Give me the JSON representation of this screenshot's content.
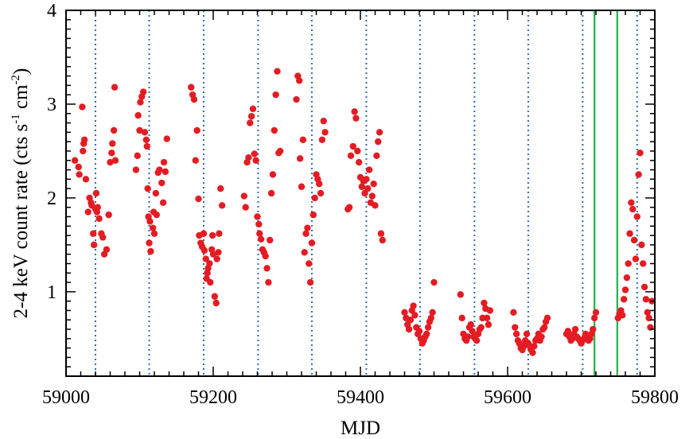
{
  "chart_data": {
    "type": "scatter",
    "title": "",
    "xlabel": "MJD",
    "ylabel": "2-4 keV count rate (cts s",
    "ylabel_sup1": "-1",
    "ylabel_mid": " cm",
    "ylabel_sup2": "-2",
    "ylabel_end": ")",
    "xlim": [
      59000,
      59800
    ],
    "ylim": [
      0.1,
      4.0
    ],
    "x_ticks": [
      59000,
      59200,
      59400,
      59600,
      59800
    ],
    "x_tick_labels": [
      "59000",
      "59200",
      "59400",
      "59600",
      "59800"
    ],
    "y_ticks": [
      1,
      2,
      3,
      4
    ],
    "y_tick_labels": [
      "1",
      "2",
      "3",
      "4"
    ],
    "grid": false,
    "marker_color": "#e31c23",
    "dotted_line_color": "#2f6db3",
    "solid_line_color": "#1db34a",
    "vlines_dotted": [
      59040,
      59113,
      59187,
      59261,
      59334,
      59408,
      59481,
      59555,
      59628,
      59702,
      59776
    ],
    "vlines_solid": [
      59718,
      59749
    ],
    "x": [
      59012,
      59017,
      59018,
      59022,
      59023,
      59024,
      59025,
      59027,
      59030,
      59032,
      59034,
      59035,
      59037,
      59038,
      59040,
      59041,
      59042,
      59043,
      59045,
      59048,
      59050,
      59052,
      59055,
      59058,
      59060,
      59062,
      59063,
      59065,
      59066,
      59067,
      59095,
      59097,
      59098,
      59100,
      59101,
      59103,
      59105,
      59107,
      59109,
      59110,
      59111,
      59112,
      59113,
      59114,
      59115,
      59118,
      59119,
      59120,
      59122,
      59123,
      59125,
      59127,
      59130,
      59132,
      59133,
      59135,
      59137,
      59170,
      59172,
      59174,
      59176,
      59178,
      59180,
      59181,
      59183,
      59185,
      59187,
      59188,
      59190,
      59191,
      59192,
      59193,
      59195,
      59196,
      59198,
      59199,
      59200,
      59202,
      59204,
      59205,
      59207,
      59208,
      59210,
      59212,
      59242,
      59244,
      59246,
      59248,
      59250,
      59252,
      59254,
      59256,
      59258,
      59260,
      59262,
      59263,
      59265,
      59267,
      59269,
      59271,
      59273,
      59275,
      59277,
      59279,
      59281,
      59283,
      59285,
      59287,
      59289,
      59291,
      59313,
      59315,
      59317,
      59318,
      59320,
      59322,
      59324,
      59326,
      59328,
      59330,
      59332,
      59334,
      59336,
      59338,
      59340,
      59342,
      59344,
      59346,
      59348,
      59350,
      59352,
      59383,
      59385,
      59387,
      59390,
      59392,
      59394,
      59396,
      59398,
      59400,
      59402,
      59404,
      59406,
      59408,
      59410,
      59412,
      59414,
      59416,
      59418,
      59420,
      59422,
      59424,
      59426,
      59428,
      59430,
      59460,
      59462,
      59464,
      59466,
      59468,
      59470,
      59472,
      59474,
      59476,
      59478,
      59480,
      59482,
      59484,
      59486,
      59488,
      59490,
      59492,
      59494,
      59496,
      59498,
      59500,
      59536,
      59538,
      59540,
      59542,
      59544,
      59546,
      59548,
      59550,
      59552,
      59554,
      59556,
      59558,
      59560,
      59562,
      59564,
      59566,
      59568,
      59570,
      59572,
      59574,
      59576,
      59608,
      59610,
      59612,
      59614,
      59616,
      59618,
      59620,
      59622,
      59624,
      59626,
      59628,
      59630,
      59632,
      59634,
      59636,
      59638,
      59640,
      59642,
      59644,
      59646,
      59648,
      59650,
      59652,
      59654,
      59680,
      59682,
      59684,
      59686,
      59688,
      59690,
      59692,
      59694,
      59696,
      59698,
      59700,
      59702,
      59704,
      59706,
      59708,
      59710,
      59712,
      59714,
      59716,
      59718,
      59720,
      59750,
      59752,
      59754,
      59756,
      59758,
      59760,
      59762,
      59764,
      59766,
      59768,
      59770,
      59772,
      59774,
      59776,
      59778,
      59780,
      59782,
      59784,
      59786,
      59788,
      59790,
      59792,
      59794,
      59796
    ],
    "y": [
      2.4,
      2.33,
      2.25,
      2.97,
      2.5,
      2.58,
      2.62,
      2.2,
      1.85,
      2.0,
      1.95,
      1.92,
      1.62,
      1.5,
      1.88,
      2.05,
      1.85,
      1.9,
      1.78,
      1.62,
      1.58,
      1.4,
      1.45,
      1.82,
      2.38,
      2.48,
      2.58,
      2.72,
      3.18,
      2.4,
      2.3,
      2.45,
      2.88,
      2.72,
      3.02,
      3.08,
      3.13,
      2.7,
      2.62,
      2.55,
      2.1,
      1.8,
      1.52,
      1.75,
      1.43,
      1.68,
      1.85,
      1.62,
      2.05,
      1.82,
      2.27,
      2.3,
      2.16,
      1.95,
      2.38,
      2.28,
      2.63,
      3.18,
      3.1,
      3.05,
      2.4,
      2.72,
      1.99,
      1.6,
      1.52,
      1.48,
      1.62,
      1.44,
      1.35,
      1.14,
      1.2,
      1.25,
      1.3,
      1.1,
      1.45,
      1.6,
      1.4,
      0.95,
      0.88,
      1.35,
      1.42,
      1.62,
      2.1,
      1.92,
      2.02,
      1.9,
      2.38,
      2.43,
      2.8,
      2.87,
      2.95,
      2.47,
      2.4,
      1.8,
      1.72,
      1.62,
      1.56,
      1.45,
      1.42,
      1.38,
      1.25,
      1.1,
      1.55,
      2.05,
      2.25,
      2.72,
      3.1,
      3.35,
      2.48,
      2.5,
      3.05,
      3.3,
      3.25,
      2.42,
      2.12,
      2.62,
      1.42,
      1.62,
      1.68,
      1.3,
      1.1,
      1.52,
      1.82,
      2.0,
      2.25,
      2.2,
      2.15,
      2.05,
      2.62,
      2.82,
      2.7,
      1.88,
      1.9,
      2.45,
      2.55,
      2.92,
      2.85,
      2.5,
      2.38,
      2.22,
      2.12,
      2.18,
      2.05,
      2.2,
      2.1,
      2.3,
      1.95,
      2.02,
      2.15,
      1.92,
      2.45,
      2.6,
      2.7,
      1.62,
      1.55,
      0.78,
      0.72,
      0.65,
      0.6,
      0.7,
      0.8,
      0.85,
      0.75,
      0.62,
      0.55,
      0.58,
      0.5,
      0.45,
      0.48,
      0.52,
      0.55,
      0.62,
      0.68,
      0.72,
      0.78,
      1.1,
      0.97,
      0.72,
      0.55,
      0.5,
      0.48,
      0.52,
      0.62,
      0.65,
      0.58,
      0.52,
      0.5,
      0.48,
      0.55,
      0.6,
      0.62,
      0.72,
      0.88,
      0.82,
      0.72,
      0.65,
      0.8,
      0.78,
      0.62,
      0.55,
      0.48,
      0.45,
      0.4,
      0.38,
      0.42,
      0.48,
      0.55,
      0.45,
      0.42,
      0.38,
      0.35,
      0.42,
      0.48,
      0.5,
      0.55,
      0.48,
      0.52,
      0.6,
      0.62,
      0.68,
      0.72,
      0.55,
      0.58,
      0.52,
      0.48,
      0.5,
      0.55,
      0.6,
      0.52,
      0.5,
      0.48,
      0.45,
      0.48,
      0.5,
      0.55,
      0.52,
      0.48,
      0.5,
      0.55,
      0.6,
      0.72,
      0.78,
      0.72,
      0.76,
      0.8,
      0.75,
      0.92,
      1.02,
      1.15,
      1.3,
      1.62,
      1.95,
      1.88,
      1.55,
      1.35,
      1.8,
      2.25,
      2.48,
      1.5,
      1.3,
      1.05,
      0.92,
      0.78,
      0.72,
      0.62,
      0.9
    ]
  }
}
